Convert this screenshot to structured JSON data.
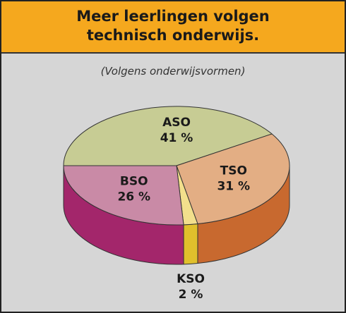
{
  "chart_data": {
    "type": "pie3d",
    "title": "Meer leerlingen volgen technisch onderwijs.",
    "subtitle": "(Volgens onderwijsvormen)",
    "categories": [
      "ASO",
      "TSO",
      "KSO",
      "BSO"
    ],
    "values": [
      41,
      31,
      2,
      26
    ],
    "value_labels": [
      "41 %",
      "31 %",
      "2 %",
      "26 %"
    ],
    "colors": [
      "#c7cc94",
      "#e3ae84",
      "#f2df8c",
      "#c98aa6"
    ],
    "side_colors": [
      "#8f9a4a",
      "#c8692f",
      "#e0c02c",
      "#a3266b"
    ]
  }
}
